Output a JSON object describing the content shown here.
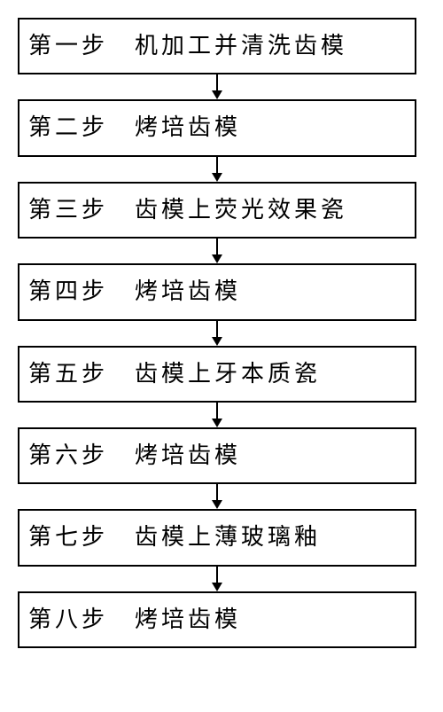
{
  "flowchart": {
    "type": "flowchart",
    "direction": "vertical",
    "node_border_color": "#000000",
    "node_border_width": 2,
    "node_background": "#ffffff",
    "arrow_color": "#000000",
    "arrow_line_width": 2,
    "arrow_head_size": 10,
    "font_size": 26,
    "letter_spacing": 4,
    "steps": [
      {
        "label": "第一步　机加工并清洗齿模"
      },
      {
        "label": "第二步　烤培齿模"
      },
      {
        "label": "第三步　齿模上荧光效果瓷"
      },
      {
        "label": "第四步　烤培齿模"
      },
      {
        "label": "第五步　齿模上牙本质瓷"
      },
      {
        "label": "第六步　烤培齿模"
      },
      {
        "label": "第七步　齿模上薄玻璃釉"
      },
      {
        "label": "第八步　烤培齿模"
      }
    ]
  }
}
